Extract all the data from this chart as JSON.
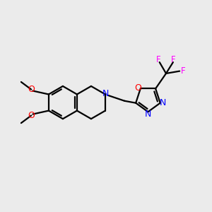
{
  "background_color": "#ebebeb",
  "bond_color": "#000000",
  "nitrogen_color": "#0000ff",
  "oxygen_color": "#ff0000",
  "fluorine_color": "#ff00ff",
  "line_width": 1.6,
  "figsize": [
    3.0,
    3.0
  ],
  "dpi": 100,
  "xlim": [
    -4.2,
    4.8
  ],
  "ylim": [
    -3.5,
    3.5
  ]
}
